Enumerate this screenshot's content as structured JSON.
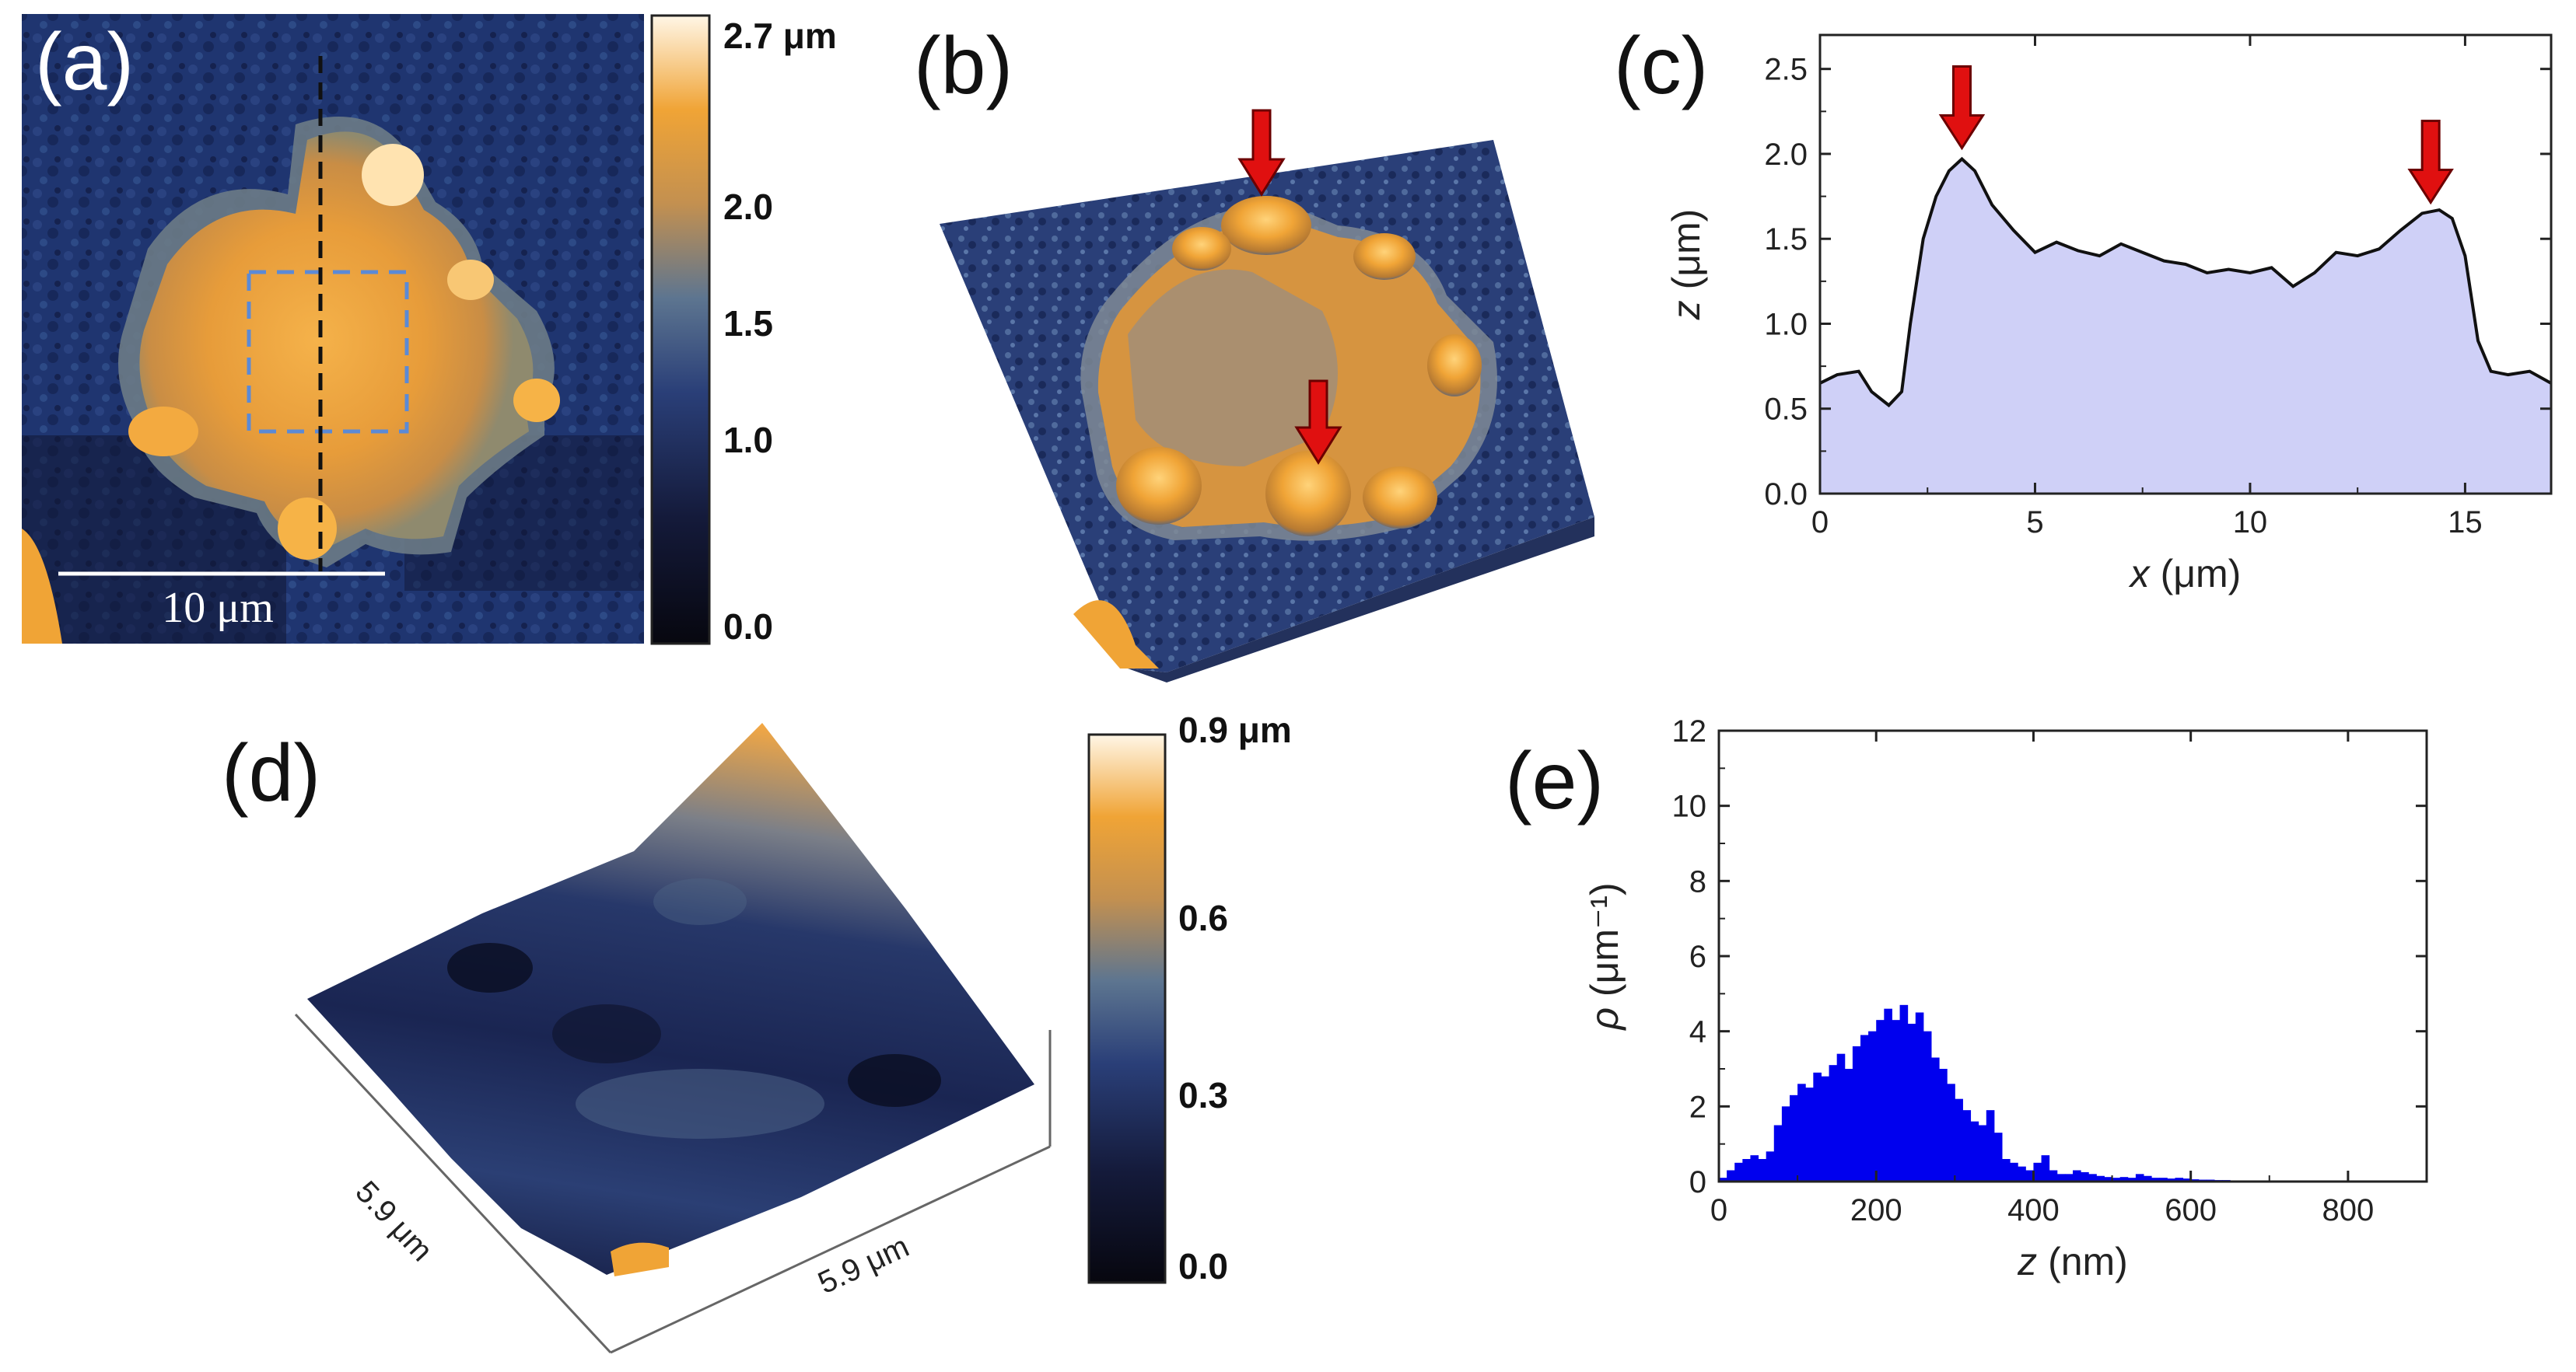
{
  "panels": {
    "a": {
      "label": "(a)",
      "scale_bar": "10 μm"
    },
    "b": {
      "label": "(b)"
    },
    "c": {
      "label": "(c)"
    },
    "d": {
      "label": "(d)",
      "side_x": "5.9 μm",
      "side_y": "5.9 μm"
    },
    "e": {
      "label": "(e)"
    }
  },
  "colorbar_a": {
    "ticks": [
      "2.7 μm",
      "2.0",
      "1.5",
      "1.0",
      "0.0"
    ]
  },
  "colorbar_d": {
    "ticks": [
      "0.9 μm",
      "0.6",
      "0.3",
      "0.0"
    ]
  },
  "colors": {
    "profile_fill": "#cfd0f7",
    "profile_line": "#111111",
    "hist_fill": "#0000ee",
    "arrow": "#e01010",
    "afm_dark": "#141a3a",
    "afm_mid": "#1f3570",
    "afm_gold": "#f0a436"
  },
  "chart_data": [
    {
      "id": "c",
      "type": "area",
      "xlabel_var": "x",
      "xlabel_unit": " (μm)",
      "ylabel_var": "z",
      "ylabel_unit": " (μm)",
      "xlim": [
        0,
        17
      ],
      "ylim": [
        0,
        2.7
      ],
      "xticks": [
        0,
        5,
        10,
        15
      ],
      "yticks": [
        0.0,
        0.5,
        1.0,
        1.5,
        2.0,
        2.5
      ],
      "xtick_labels": [
        "0",
        "5",
        "10",
        "15"
      ],
      "ytick_labels": [
        "0.0",
        "0.5",
        "1.0",
        "1.5",
        "2.0",
        "2.5"
      ],
      "x": [
        0,
        0.4,
        0.9,
        1.2,
        1.6,
        1.9,
        2.1,
        2.4,
        2.7,
        3.0,
        3.3,
        3.6,
        4.0,
        4.5,
        5.0,
        5.5,
        6.0,
        6.5,
        7.0,
        7.5,
        8.0,
        8.5,
        9.0,
        9.5,
        10.0,
        10.5,
        11.0,
        11.5,
        12.0,
        12.5,
        13.0,
        13.5,
        14.0,
        14.4,
        14.7,
        15.0,
        15.3,
        15.6,
        16.0,
        16.5,
        17.0
      ],
      "y": [
        0.65,
        0.7,
        0.72,
        0.6,
        0.52,
        0.6,
        1.0,
        1.5,
        1.75,
        1.9,
        1.97,
        1.9,
        1.7,
        1.55,
        1.42,
        1.48,
        1.43,
        1.4,
        1.47,
        1.42,
        1.37,
        1.35,
        1.3,
        1.32,
        1.3,
        1.33,
        1.22,
        1.3,
        1.42,
        1.4,
        1.44,
        1.55,
        1.65,
        1.67,
        1.62,
        1.4,
        0.9,
        0.72,
        0.7,
        0.72,
        0.65
      ],
      "arrows_at_x": [
        3.3,
        14.2
      ]
    },
    {
      "id": "e",
      "type": "bar",
      "xlabel_var": "z",
      "xlabel_unit": " (nm)",
      "ylabel_var": "ρ",
      "ylabel_unit": " (μm⁻¹)",
      "xlim": [
        0,
        900
      ],
      "ylim": [
        0,
        12
      ],
      "xticks": [
        0,
        200,
        400,
        600,
        800
      ],
      "yticks": [
        0,
        2,
        4,
        6,
        8,
        10,
        12
      ],
      "xtick_labels": [
        "0",
        "200",
        "400",
        "600",
        "800"
      ],
      "ytick_labels": [
        "0",
        "2",
        "4",
        "6",
        "8",
        "10",
        "12"
      ],
      "bin_width": 10,
      "bin_start": 0,
      "values": [
        0.1,
        0.3,
        0.5,
        0.6,
        0.7,
        0.6,
        0.8,
        1.5,
        2.0,
        2.3,
        2.6,
        2.5,
        2.9,
        2.8,
        3.1,
        3.4,
        3.0,
        3.6,
        3.9,
        4.0,
        4.3,
        4.6,
        4.3,
        4.7,
        4.2,
        4.5,
        4.0,
        3.3,
        3.0,
        2.6,
        2.2,
        1.9,
        1.6,
        1.5,
        1.9,
        1.3,
        0.6,
        0.5,
        0.4,
        0.3,
        0.5,
        0.7,
        0.3,
        0.2,
        0.2,
        0.3,
        0.25,
        0.2,
        0.15,
        0.12,
        0.1,
        0.12,
        0.1,
        0.2,
        0.15,
        0.1,
        0.1,
        0.08,
        0.1,
        0.08,
        0.06,
        0.05,
        0.05,
        0.04,
        0.04,
        0.03,
        0.03,
        0.02,
        0.02,
        0.02,
        0.02,
        0.02,
        0.01,
        0.01,
        0.01,
        0.01,
        0.01,
        0.01,
        0.01,
        0.01,
        0.01,
        0.01,
        0.01
      ]
    }
  ]
}
